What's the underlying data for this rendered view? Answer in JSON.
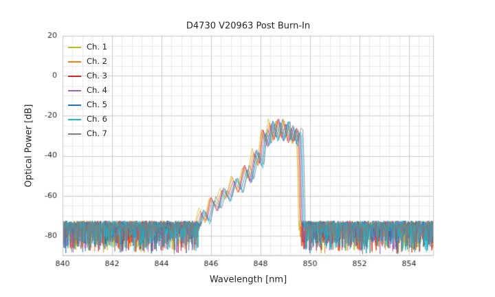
{
  "title": "D4730 V20963 Post Burn-In",
  "chart_data": {
    "type": "line",
    "title": "D4730 V20963 Post Burn-In",
    "xlabel": "Wavelength [nm]",
    "ylabel": "Optical Power [dB]",
    "xlim": [
      840,
      855
    ],
    "ylim": [
      -90,
      20
    ],
    "xticks": [
      840,
      842,
      844,
      846,
      848,
      850,
      852,
      854
    ],
    "yticks": [
      20,
      0,
      -20,
      -40,
      -60,
      -80
    ],
    "grid": true,
    "minor_grid": true,
    "grid_color": "#c6c6c6",
    "minor_grid_color": "#e2e2e2",
    "legend_position": "upper left",
    "series": [
      {
        "name": "Ch. 1",
        "color": "#bcbd22"
      },
      {
        "name": "Ch. 2",
        "color": "#ff7f0e"
      },
      {
        "name": "Ch. 3",
        "color": "#d62728"
      },
      {
        "name": "Ch. 4",
        "color": "#9467bd"
      },
      {
        "name": "Ch. 5",
        "color": "#1f77b4"
      },
      {
        "name": "Ch. 6",
        "color": "#17becf"
      },
      {
        "name": "Ch. 7",
        "color": "#7f7f7f"
      }
    ],
    "noise_floor": {
      "top_dB": -72.5,
      "mean_dB": -78,
      "min_dB": -89
    },
    "signal_band": {
      "start_nm": 845.5,
      "stop_nm": 849.65,
      "peak_dB": -22.5,
      "peak_nm": 848.75,
      "mode_spacing_nm": 0.45
    },
    "envelope_points": [
      [
        845.42,
        -78
      ],
      [
        845.65,
        -68
      ],
      [
        845.85,
        -73
      ],
      [
        846.05,
        -62
      ],
      [
        846.28,
        -67
      ],
      [
        846.5,
        -57
      ],
      [
        846.72,
        -62
      ],
      [
        846.95,
        -52
      ],
      [
        847.17,
        -58
      ],
      [
        847.4,
        -46
      ],
      [
        847.6,
        -53
      ],
      [
        847.8,
        -38
      ],
      [
        848.0,
        -45
      ],
      [
        848.15,
        -28
      ],
      [
        848.3,
        -35
      ],
      [
        848.45,
        -23.5
      ],
      [
        848.6,
        -32
      ],
      [
        848.75,
        -22.5
      ],
      [
        848.9,
        -32
      ],
      [
        849.05,
        -23.5
      ],
      [
        849.17,
        -33
      ],
      [
        849.3,
        -26
      ],
      [
        849.4,
        -34
      ],
      [
        849.5,
        -27.5
      ],
      [
        849.58,
        -29
      ],
      [
        849.62,
        -45
      ],
      [
        849.68,
        -78
      ]
    ]
  }
}
